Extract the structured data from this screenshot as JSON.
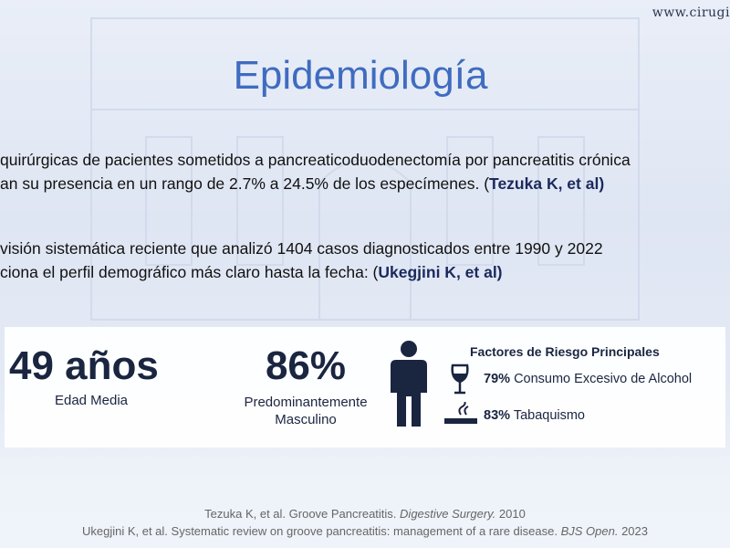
{
  "header": {
    "site": "www.cirugi",
    "title": "Epidemiología"
  },
  "paragraphs": [
    {
      "lines": [
        {
          "text": "quirúrgicas de pacientes sometidos a pancreaticoduodenectomía por pancreatitis crónica"
        },
        {
          "text": "an su presencia en un rango de 2.7% a 24.5% de los especímenes. (",
          "bold": "Tezuka K, et al)"
        }
      ]
    },
    {
      "lines": [
        {
          "text": "visión sistemática reciente que analizó 1404 casos diagnosticados entre 1990 y 2022"
        },
        {
          "text": "ciona el perfil demográfico más claro hasta la fecha: (",
          "bold": "Ukegjini K, et al)"
        }
      ]
    }
  ],
  "stats": {
    "age": {
      "value": "49 años",
      "label": "Edad Media"
    },
    "male": {
      "value": "86%",
      "label": "Predominantemente Masculino"
    },
    "risk": {
      "title": "Factores de Riesgo Principales",
      "items": [
        {
          "value": "79%",
          "label": "Consumo Excesivo de Alcohol"
        },
        {
          "value": "83%",
          "label": "Tabaquismo"
        }
      ]
    }
  },
  "references": [
    {
      "text": "Tezuka K, et al. Groove Pancreatitis. ",
      "journal": "Digestive Surgery.",
      "year": " 2010"
    },
    {
      "text": "Ukegjini K, et al. Systematic review on groove pancreatitis: management of a rare disease. ",
      "journal": "BJS Open.",
      "year": " 2023"
    }
  ]
}
